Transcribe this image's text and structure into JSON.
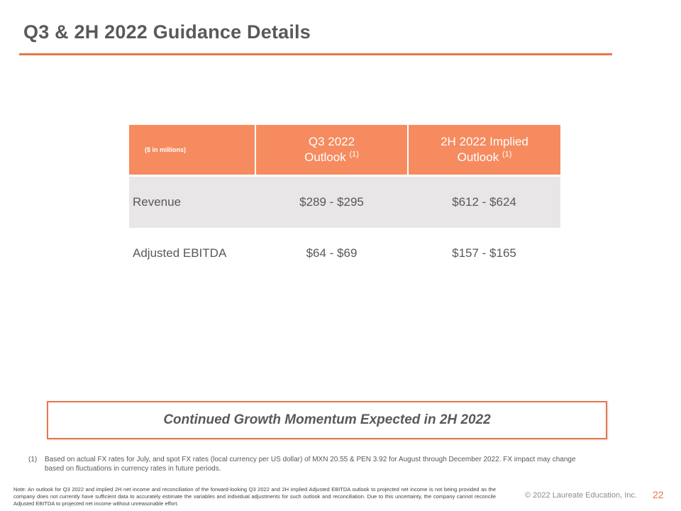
{
  "slide": {
    "title": "Q3 & 2H 2022 Guidance Details",
    "accent_color": "#e8764a",
    "header_fill": "#f68b5f",
    "row_shade": "#e8e6e7"
  },
  "table": {
    "units_label": "($ in millions)",
    "columns": [
      {
        "line1": "Q3 2022",
        "line2": "Outlook",
        "footnote_ref": "(1)"
      },
      {
        "line1": "2H 2022 Implied",
        "line2": "Outlook",
        "footnote_ref": "(1)"
      }
    ],
    "rows": [
      {
        "label": "Revenue",
        "values": [
          "$289 - $295",
          "$612 - $624"
        ]
      },
      {
        "label": "Adjusted EBITDA",
        "values": [
          "$64 - $69",
          "$157 - $165"
        ]
      }
    ]
  },
  "callout": {
    "text": "Continued Growth Momentum Expected in 2H 2022"
  },
  "footnote": {
    "number": "(1)",
    "text": "Based on actual FX rates for July, and spot FX rates (local currency per US dollar) of MXN 20.55 & PEN 3.92 for August through December 2022. FX impact may change based on fluctuations in currency rates in future periods."
  },
  "note": "Note: An outlook for Q3 2022 and implied 2H net income and reconciliation of the forward-looking Q3 2022 and 2H implied Adjusted EBITDA outlook to projected net income is not being provided as the company does not currently have sufficient data to accurately estimate the variables and individual adjustments for such outlook and reconciliation. Due to this uncertainty, the company cannot reconcile Adjusted EBITDA to projected net income without unreasonable effort.",
  "footer": {
    "copyright": "© 2022 Laureate Education, Inc.",
    "page_number": "22"
  }
}
